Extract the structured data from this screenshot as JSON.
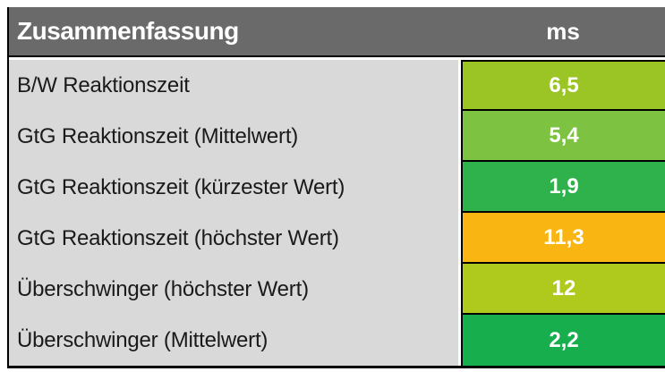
{
  "table": {
    "title": "Zusammenfassung",
    "unit_header": "ms",
    "rows": [
      {
        "label": "B/W Reaktionszeit",
        "value": "6,5",
        "color": "#9BC425"
      },
      {
        "label": "GtG Reaktionszeit (Mittelwert)",
        "value": "5,4",
        "color": "#7DC241"
      },
      {
        "label": "GtG Reaktionszeit (kürzester Wert)",
        "value": "1,9",
        "color": "#2FB14C"
      },
      {
        "label": "GtG Reaktionszeit (höchster Wert)",
        "value": "11,3",
        "color": "#F9B511"
      },
      {
        "label": "Überschwinger (höchster Wert)",
        "value": "12",
        "color": "#AFC91C"
      },
      {
        "label": "Überschwinger (Mittelwert)",
        "value": "2,2",
        "color": "#17AE4E"
      }
    ],
    "colors": {
      "header_bg": "#6A6A6A",
      "header_text": "#FFFFFF",
      "label_bg": "#D9D9D9",
      "label_text": "#1A1A1A",
      "value_text": "#FFFFFF",
      "border": "#000000"
    }
  },
  "chart_data": {
    "type": "table",
    "title": "Zusammenfassung",
    "columns": [
      "Zusammenfassung",
      "ms"
    ],
    "rows": [
      [
        "B/W Reaktionszeit",
        6.5
      ],
      [
        "GtG Reaktionszeit (Mittelwert)",
        5.4
      ],
      [
        "GtG Reaktionszeit (kürzester Wert)",
        1.9
      ],
      [
        "GtG Reaktionszeit (höchster Wert)",
        11.3
      ],
      [
        "Überschwinger (höchster Wert)",
        12
      ],
      [
        "Überschwinger (Mittelwert)",
        2.2
      ]
    ],
    "cell_colors": [
      "#9BC425",
      "#7DC241",
      "#2FB14C",
      "#F9B511",
      "#AFC91C",
      "#17AE4E"
    ],
    "notes": "value cell background encodes rating: green = good, amber = worse"
  }
}
